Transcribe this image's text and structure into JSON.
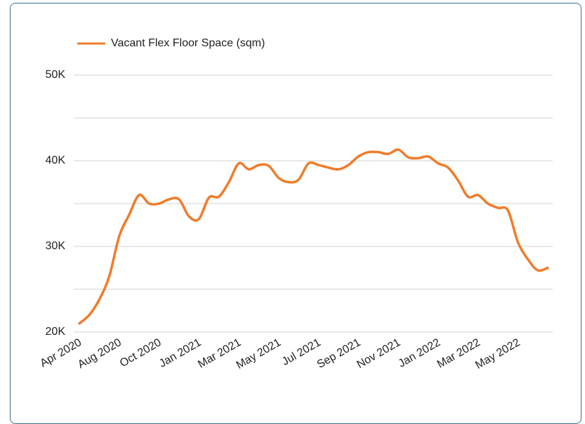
{
  "chart_data": {
    "type": "line",
    "categories": [
      "Apr 2020",
      null,
      null,
      null,
      "Aug 2020",
      null,
      null,
      null,
      "Oct 2020",
      null,
      null,
      null,
      "Jan 2021",
      null,
      null,
      null,
      "Mar 2021",
      null,
      null,
      null,
      "May 2021",
      null,
      null,
      null,
      "Jul 2021",
      null,
      null,
      null,
      "Sep 2021",
      null,
      null,
      null,
      "Nov 2021",
      null,
      null,
      null,
      "Jan 2022",
      null,
      null,
      null,
      "Mar 2022",
      null,
      null,
      null,
      "May 2022",
      null,
      null,
      null
    ],
    "series": [
      {
        "name": "Vacant Flex Floor Space (sqm)",
        "color": "#f07c2a",
        "values": [
          21000,
          22000,
          23800,
          26500,
          31200,
          33700,
          36000,
          35000,
          35000,
          35500,
          35500,
          33500,
          33200,
          35700,
          35800,
          37500,
          39700,
          39000,
          39500,
          39400,
          38000,
          37500,
          37800,
          39700,
          39500,
          39200,
          39000,
          39500,
          40500,
          41000,
          41000,
          40800,
          41300,
          40400,
          40300,
          40500,
          39700,
          39200,
          37700,
          35800,
          36000,
          35000,
          34500,
          34200,
          30500,
          28500,
          27200,
          27500
        ]
      }
    ],
    "ylim": [
      20000,
      50000
    ],
    "yticks": [
      {
        "value": 20000,
        "label": "20K"
      },
      {
        "value": 30000,
        "label": "30K"
      },
      {
        "value": 40000,
        "label": "40K"
      },
      {
        "value": 50000,
        "label": "50K"
      }
    ],
    "minor_yticks": [
      25000,
      35000,
      45000
    ],
    "grid": true,
    "legend": "top"
  }
}
